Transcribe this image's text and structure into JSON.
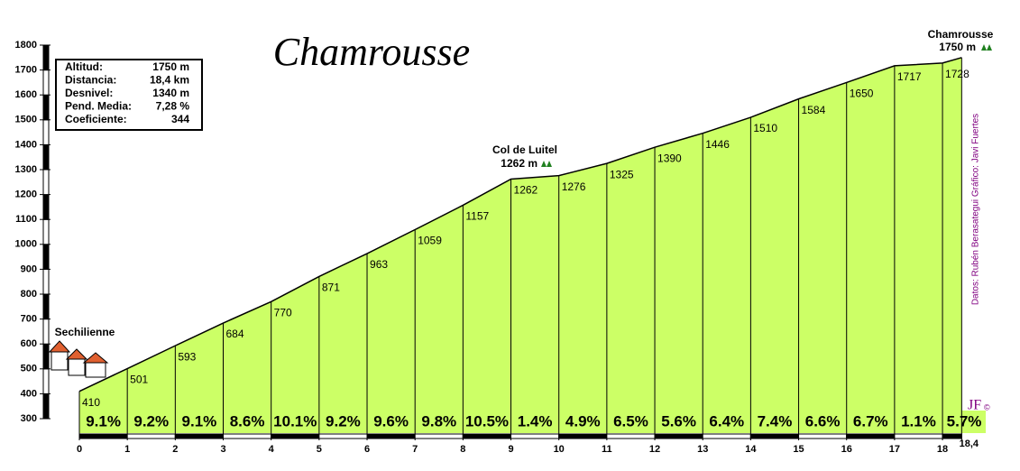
{
  "chart_data": {
    "type": "profile",
    "title": "Chamrousse",
    "x": [
      0,
      1,
      2,
      3,
      4,
      5,
      6,
      7,
      8,
      9,
      10,
      11,
      12,
      13,
      14,
      15,
      16,
      17,
      18,
      18.4
    ],
    "values": [
      410,
      501,
      593,
      684,
      770,
      871,
      963,
      1059,
      1157,
      1262,
      1276,
      1325,
      1390,
      1446,
      1510,
      1584,
      1650,
      1717,
      1728,
      1750
    ],
    "value_labels": [
      "410",
      "501",
      "593",
      "684",
      "770",
      "871",
      "963",
      "1059",
      "1157",
      "1262",
      "1276",
      "1325",
      "1390",
      "1446",
      "1510",
      "1584",
      "1650",
      "1717",
      "1728",
      null
    ],
    "color": "#ccff66",
    "xlim": [
      0,
      18.4
    ],
    "xticks": [
      0,
      1,
      2,
      3,
      4,
      5,
      6,
      7,
      8,
      9,
      10,
      11,
      12,
      13,
      14,
      15,
      16,
      17,
      18,
      {
        "value": 18.4,
        "label": "18,4"
      }
    ],
    "ylim": [
      300,
      1800
    ],
    "yticks": [
      300,
      400,
      500,
      600,
      700,
      800,
      900,
      1000,
      1100,
      1200,
      1300,
      1400,
      1500,
      1600,
      1700,
      1800
    ],
    "gradients": {
      "values": [
        9.1,
        9.2,
        9.1,
        8.6,
        10.1,
        9.2,
        9.6,
        9.8,
        10.5,
        1.4,
        4.9,
        6.5,
        5.6,
        6.4,
        7.4,
        6.6,
        6.7,
        1.1,
        5.7
      ],
      "value_labels": [
        "9.1%",
        "9.2%",
        "9.1%",
        "8.6%",
        "10.1%",
        "9.2%",
        "9.6%",
        "9.8%",
        "10.5%",
        "1.4%",
        "4.9%",
        "6.5%",
        "5.6%",
        "6.4%",
        "7.4%",
        "6.6%",
        "6.7%",
        "1.1%",
        "5.7%"
      ]
    },
    "annotations": [
      {
        "name": "Sechilienne"
      },
      {
        "name": "Col de Luitel",
        "label": "1262 m"
      },
      {
        "name": "Chamrousse",
        "label": "1750 m"
      }
    ],
    "info_box": [
      [
        "Altitud:",
        "1750 m"
      ],
      [
        "Distancia:",
        "18,4 km"
      ],
      [
        "Desnivel:",
        "1340 m"
      ],
      [
        "Pend. Media:",
        "7,28 %"
      ],
      [
        "Coeficiente:",
        "344"
      ]
    ],
    "credits": "Datos: Rubén Berasategui   Gráfico: Javi Fuertes",
    "logo": "JF"
  }
}
